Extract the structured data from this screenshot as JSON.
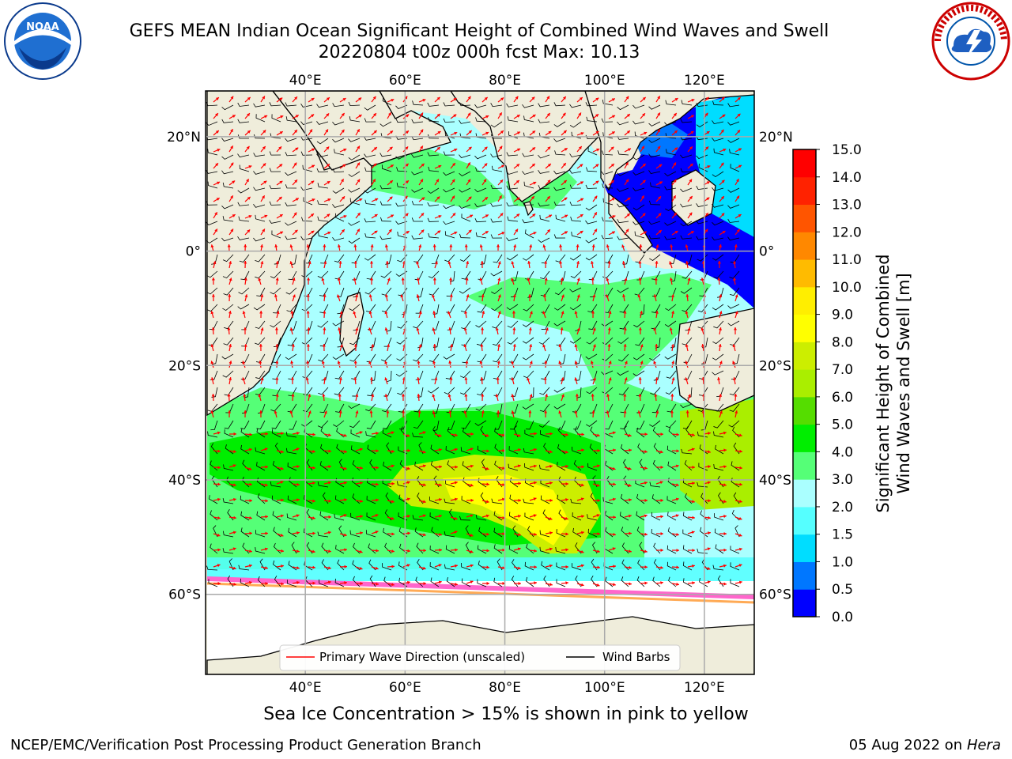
{
  "title": {
    "line1": "GEFS MEAN Indian Ocean Significant Height of Combined Wind Waves and Swell",
    "line2": "20220804 t00z 000h fcst   Max: 10.13"
  },
  "logos": {
    "left": {
      "icon": "noaa-logo-icon",
      "text": "NOAA"
    },
    "right": {
      "icon": "national-weather-service-logo-icon"
    }
  },
  "map": {
    "projection": "equirectangular",
    "lon_range": [
      20,
      130
    ],
    "lat_range": [
      -74,
      28
    ],
    "lon_ticks": [
      {
        "value": 40,
        "label": "40°E"
      },
      {
        "value": 60,
        "label": "60°E"
      },
      {
        "value": 80,
        "label": "80°E"
      },
      {
        "value": 100,
        "label": "100°E"
      },
      {
        "value": 120,
        "label": "120°E"
      }
    ],
    "lat_ticks": [
      {
        "value": 20,
        "label": "20°N"
      },
      {
        "value": 0,
        "label": "0°"
      },
      {
        "value": -20,
        "label": "20°S"
      },
      {
        "value": -40,
        "label": "40°S"
      },
      {
        "value": -60,
        "label": "60°S"
      }
    ],
    "grid": true,
    "land_color": "#efeddb",
    "ice_note_colors": [
      "#ff66cc",
      "#ffaa55",
      "#ffee44"
    ],
    "wave_arrow_color": "#ff0000",
    "wind_barb_color": "#000000"
  },
  "legend": {
    "placement": "bottom-center",
    "items": [
      {
        "label": "Primary Wave Direction (unscaled)",
        "color": "#ff0000"
      },
      {
        "label": "Wind Barbs",
        "color": "#000000"
      }
    ]
  },
  "colorbar": {
    "label_line1": "Significant Height of Combined",
    "label_line2": "Wind Waves and Swell [m]",
    "levels": [
      "0.0",
      "0.5",
      "1.0",
      "1.5",
      "2.0",
      "3.0",
      "4.0",
      "5.0",
      "6.0",
      "7.0",
      "8.0",
      "9.0",
      "10.0",
      "11.0",
      "12.0",
      "13.0",
      "14.0",
      "15.0"
    ],
    "colors": [
      "#0000ff",
      "#0077ff",
      "#00ddff",
      "#55ffff",
      "#aaffff",
      "#55ff77",
      "#00ee00",
      "#55dd00",
      "#aaee00",
      "#ccee00",
      "#ffff00",
      "#ffee00",
      "#ffbb00",
      "#ff8800",
      "#ff5500",
      "#ff2200",
      "#ff0000"
    ]
  },
  "footer": {
    "note": "Sea Ice Concentration > 15% is shown in pink to yellow",
    "org": "NCEP/EMC/Verification Post Processing Product Generation Branch",
    "date": "05 Aug 2022 on",
    "host": "Hera"
  }
}
